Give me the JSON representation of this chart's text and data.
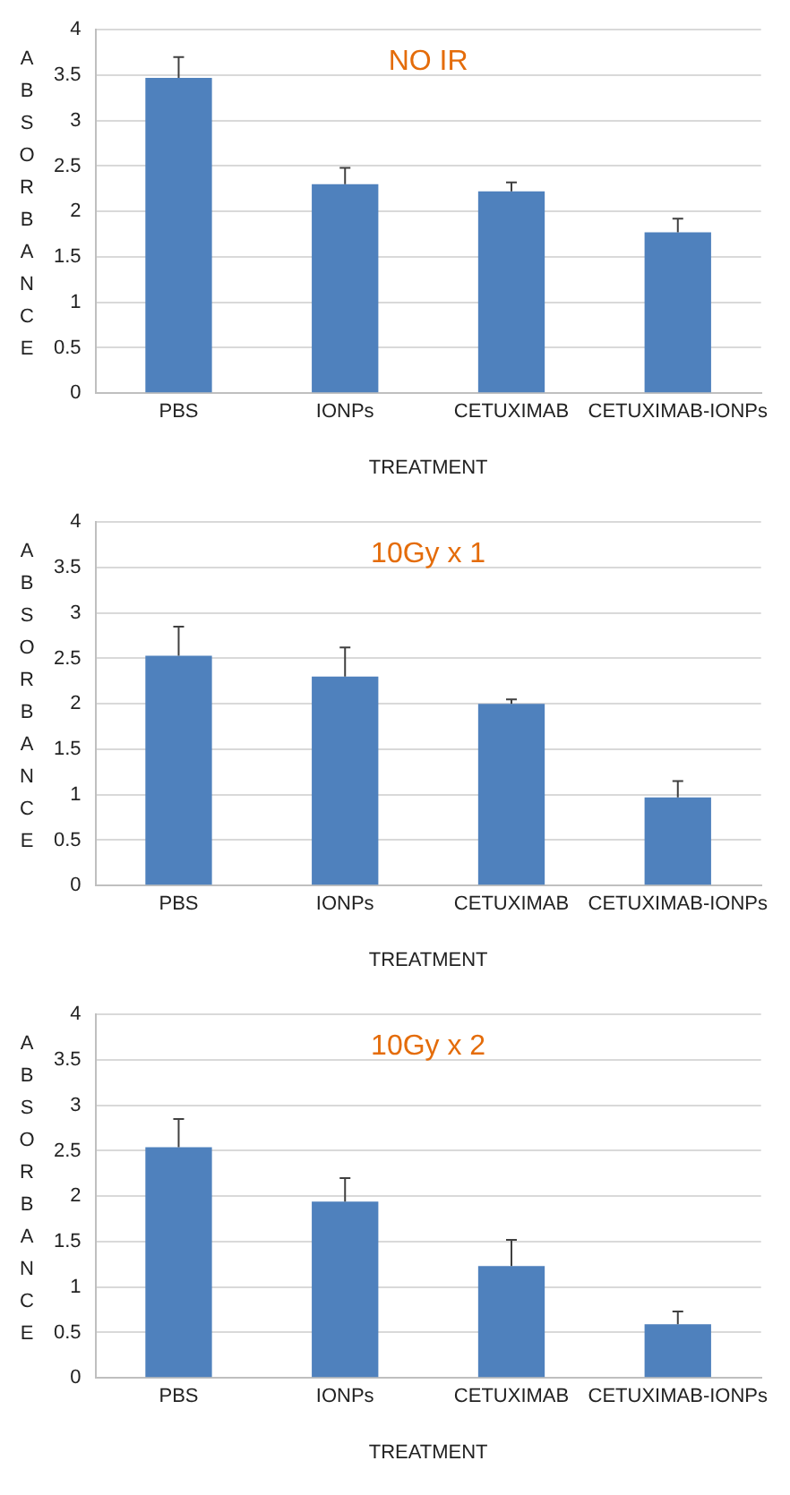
{
  "chart_data": [
    {
      "type": "bar",
      "title": "NO IR",
      "xlabel": "TREATMENT",
      "ylabel": "ABSORBANCE",
      "categories": [
        "PBS",
        "IONPs",
        "CETUXIMAB",
        "CETUXIMAB-IONPs"
      ],
      "values": [
        3.47,
        2.3,
        2.22,
        1.77
      ],
      "errors": [
        [
          3.47,
          3.7
        ],
        [
          2.3,
          2.48
        ],
        [
          2.22,
          2.32
        ],
        [
          1.77,
          1.92
        ]
      ],
      "color": "#4f81bd",
      "ylim": [
        0,
        4
      ],
      "yticks": [
        0,
        0.5,
        1,
        1.5,
        2,
        2.5,
        3,
        3.5,
        4
      ],
      "grid": "y"
    },
    {
      "type": "bar",
      "title": "10Gy x 1",
      "xlabel": "TREATMENT",
      "ylabel": "ABSORBANCE",
      "categories": [
        "PBS",
        "IONPs",
        "CETUXIMAB",
        "CETUXIMAB-IONPs"
      ],
      "values": [
        2.53,
        2.3,
        2.0,
        0.97
      ],
      "errors": [
        [
          2.53,
          2.85
        ],
        [
          2.3,
          2.62
        ],
        [
          2.0,
          2.05
        ],
        [
          0.97,
          1.15
        ]
      ],
      "color": "#4f81bd",
      "ylim": [
        0,
        4
      ],
      "yticks": [
        0,
        0.5,
        1,
        1.5,
        2,
        2.5,
        3,
        3.5,
        4
      ],
      "grid": "y"
    },
    {
      "type": "bar",
      "title": "10Gy x 2",
      "xlabel": "TREATMENT",
      "ylabel": "ABSORBANCE",
      "categories": [
        "PBS",
        "IONPs",
        "CETUXIMAB",
        "CETUXIMAB-IONPs"
      ],
      "values": [
        2.54,
        1.94,
        1.23,
        0.59
      ],
      "errors": [
        [
          2.54,
          2.85
        ],
        [
          1.94,
          2.2
        ],
        [
          1.23,
          1.52
        ],
        [
          0.59,
          0.73
        ]
      ],
      "color": "#4f81bd",
      "ylim": [
        0,
        4
      ],
      "yticks": [
        0,
        0.5,
        1,
        1.5,
        2,
        2.5,
        3,
        3.5,
        4
      ],
      "grid": "y"
    }
  ]
}
